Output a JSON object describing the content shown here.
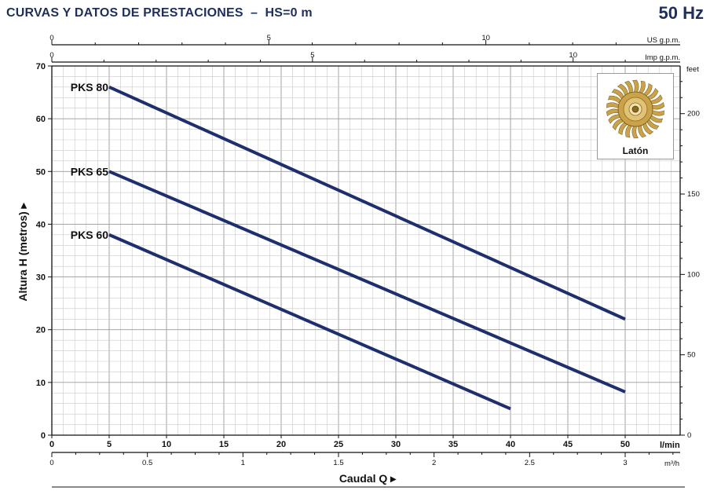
{
  "header": {
    "title": "CURVAS Y DATOS DE PRESTACIONES  –  HS=0 m",
    "frequency": "50 Hz"
  },
  "chart_data": {
    "type": "line",
    "xlabel": "Caudal Q",
    "ylabel": "Altura H (metros)",
    "x_unit": "l/min",
    "xlim": [
      0,
      50
    ],
    "ylim": [
      0,
      70
    ],
    "x_ticks": [
      0,
      5,
      10,
      15,
      20,
      25,
      30,
      35,
      40,
      45,
      50
    ],
    "y_ticks": [
      0,
      10,
      20,
      30,
      40,
      50,
      60,
      70
    ],
    "secondary_axes": {
      "m3h": {
        "unit": "m³/h",
        "ticks": [
          0,
          0.5,
          1,
          1.5,
          2,
          2.5,
          3
        ],
        "tick_labels": [
          "0",
          "0.5",
          "1",
          "1.5",
          "2",
          "2.5",
          "3"
        ]
      },
      "us_gpm": {
        "unit": "US g.p.m.",
        "ticks": [
          0,
          5,
          10
        ],
        "minor_step": 1,
        "max": 13
      },
      "imp_gpm": {
        "unit": "Imp g.p.m.",
        "ticks": [
          0,
          5,
          10
        ],
        "minor_step": 1,
        "max": 11
      },
      "feet": {
        "unit": "feet",
        "ticks": [
          0,
          50,
          100,
          150,
          200
        ],
        "minor_step": 10,
        "max": 229
      }
    },
    "grid": true,
    "series": [
      {
        "name": "PKS 80",
        "x": [
          5,
          50
        ],
        "y": [
          66,
          22
        ]
      },
      {
        "name": "PKS 65",
        "x": [
          5,
          50
        ],
        "y": [
          50,
          8.2
        ]
      },
      {
        "name": "PKS 60",
        "x": [
          5,
          40
        ],
        "y": [
          38,
          5
        ]
      }
    ]
  },
  "inset": {
    "label": "Latón",
    "icon": "brass-impeller-icon"
  },
  "colors": {
    "title": "#1f2f5c",
    "curve": "#1f2f6e",
    "impeller": "#c9a24a"
  }
}
